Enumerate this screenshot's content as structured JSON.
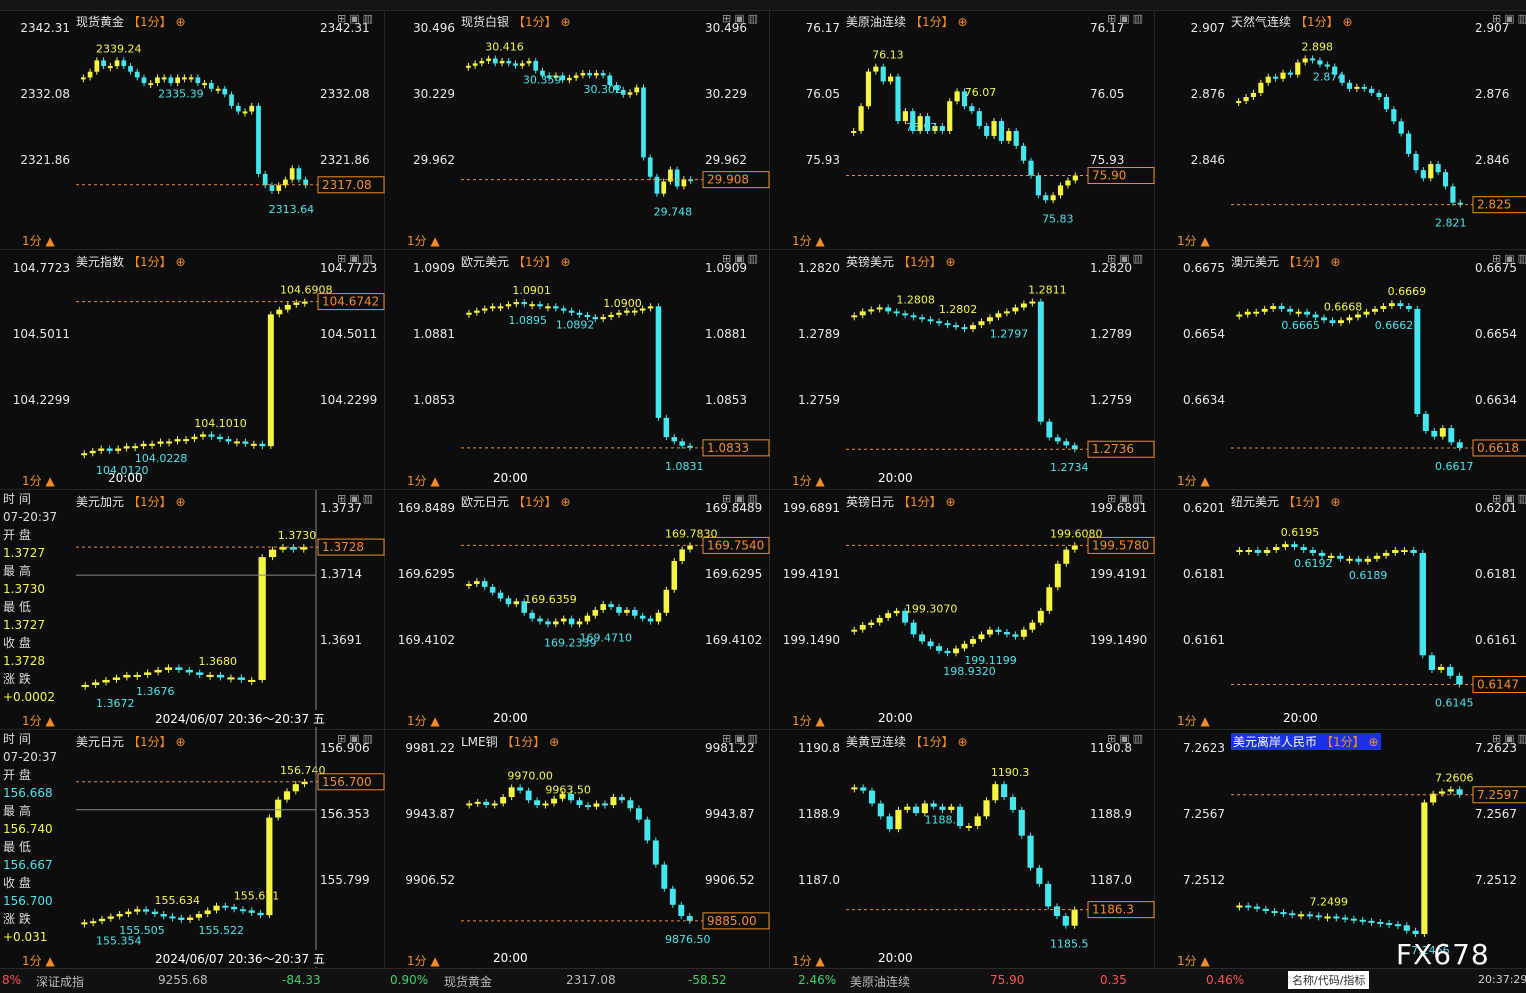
{
  "panels": [
    {
      "title": "现货黄金",
      "tf": "【1分】",
      "yticks": [
        "2342.31",
        "2332.08",
        "2321.86"
      ],
      "current": "2317.08",
      "hi": "2339.24",
      "lo": "2313.64",
      "extra": [
        "2335.39"
      ],
      "xlabel": "",
      "chart_data": {
        "type": "candlestick",
        "ylim": [
          2310,
          2344
        ],
        "closes": [
          2336,
          2337,
          2339,
          2338,
          2338,
          2339,
          2338,
          2337,
          2336,
          2335,
          2335,
          2336,
          2336,
          2335,
          2336,
          2336,
          2336,
          2335,
          2335,
          2334,
          2334,
          2333,
          2331,
          2330,
          2330,
          2331,
          2319,
          2317,
          2316,
          2317,
          2318,
          2320,
          2318,
          2317
        ]
      }
    },
    {
      "title": "现货白银",
      "tf": "【1分】",
      "yticks": [
        "30.496",
        "30.229",
        "29.962"
      ],
      "current": "29.908",
      "hi": "30.416",
      "lo": "29.748",
      "extra": [
        "30.359",
        "30.302"
      ],
      "xlabel": "",
      "chart_data": {
        "type": "candlestick",
        "ylim": [
          29.72,
          30.52
        ],
        "closes": [
          30.38,
          30.39,
          30.4,
          30.41,
          30.39,
          30.4,
          30.39,
          30.38,
          30.39,
          30.4,
          30.36,
          30.34,
          30.33,
          30.34,
          30.32,
          30.33,
          30.34,
          30.35,
          30.34,
          30.35,
          30.34,
          30.3,
          30.28,
          30.26,
          30.27,
          30.29,
          30.0,
          29.92,
          29.85,
          29.9,
          29.95,
          29.88,
          29.91,
          29.908
        ]
      }
    },
    {
      "title": "美原油连续",
      "tf": "【1分】",
      "yticks": [
        "76.17",
        "76.05",
        "75.93"
      ],
      "current": "75.90",
      "hi": "76.13",
      "lo": "75.83",
      "extra": [
        "75.97",
        "76.07"
      ],
      "xlabel": "",
      "chart_data": {
        "type": "candlestick",
        "ylim": [
          75.8,
          76.19
        ],
        "closes": [
          75.99,
          76.04,
          76.11,
          76.12,
          76.09,
          76.1,
          76.01,
          76.03,
          75.99,
          76.02,
          75.99,
          76.0,
          75.99,
          76.05,
          76.07,
          76.04,
          76.03,
          76.0,
          75.98,
          76.01,
          75.97,
          75.99,
          75.96,
          75.93,
          75.9,
          75.86,
          75.85,
          75.86,
          75.88,
          75.89,
          75.9
        ]
      }
    },
    {
      "title": "天然气连续",
      "tf": "【1分】",
      "yticks": [
        "2.907",
        "2.876",
        "2.846"
      ],
      "current": "2.825",
      "hi": "2.898",
      "lo": "2.821",
      "extra": [
        "2.874"
      ],
      "xlabel": "",
      "chart_data": {
        "type": "candlestick",
        "ylim": [
          2.815,
          2.91
        ],
        "closes": [
          2.876,
          2.878,
          2.88,
          2.885,
          2.888,
          2.887,
          2.89,
          2.889,
          2.895,
          2.897,
          2.896,
          2.894,
          2.893,
          2.889,
          2.885,
          2.882,
          2.883,
          2.882,
          2.88,
          2.878,
          2.872,
          2.866,
          2.86,
          2.85,
          2.842,
          2.838,
          2.845,
          2.841,
          2.834,
          2.826,
          2.825
        ]
      }
    },
    {
      "title": "美元指数",
      "tf": "【1分】",
      "yticks": [
        "104.7723",
        "104.5011",
        "104.2299"
      ],
      "current": "104.6742",
      "hi": "104.6908",
      "lo": "104.0120",
      "extra": [
        "104.0228",
        "104.1010"
      ],
      "xlabel": "20:00",
      "chart_data": {
        "type": "candlestick",
        "ylim": [
          103.98,
          104.8
        ],
        "closes": [
          104.03,
          104.04,
          104.05,
          104.04,
          104.05,
          104.06,
          104.06,
          104.07,
          104.07,
          104.08,
          104.08,
          104.09,
          104.09,
          104.1,
          104.11,
          104.1,
          104.09,
          104.08,
          104.08,
          104.07,
          104.07,
          104.06,
          104.62,
          104.64,
          104.66,
          104.67,
          104.674
        ]
      }
    },
    {
      "title": "欧元美元",
      "tf": "【1分】",
      "yticks": [
        "1.0909",
        "1.0881",
        "1.0853"
      ],
      "current": "1.0833",
      "hi": "1.0901",
      "lo": "1.0831",
      "extra": [
        "1.0895",
        "1.0892",
        "1.0900"
      ],
      "xlabel": "20:00",
      "chart_data": {
        "type": "candlestick",
        "ylim": [
          1.0825,
          1.0915
        ],
        "closes": [
          1.0896,
          1.0897,
          1.0898,
          1.0899,
          1.0899,
          1.09,
          1.0901,
          1.09,
          1.09,
          1.0899,
          1.0899,
          1.0898,
          1.0897,
          1.0896,
          1.0895,
          1.0894,
          1.0893,
          1.0894,
          1.0895,
          1.0896,
          1.0897,
          1.0897,
          1.0898,
          1.0899,
          1.0847,
          1.0838,
          1.0836,
          1.0834,
          1.0833
        ]
      }
    },
    {
      "title": "英镑美元",
      "tf": "【1分】",
      "yticks": [
        "1.2820",
        "1.2789",
        "1.2759"
      ],
      "current": "1.2736",
      "hi": "1.2811",
      "lo": "1.2734",
      "extra": [
        "1.2808",
        "1.2802",
        "1.2797"
      ],
      "xlabel": "20:00",
      "chart_data": {
        "type": "candlestick",
        "ylim": [
          1.2728,
          1.2826
        ],
        "closes": [
          1.2804,
          1.2806,
          1.2807,
          1.2808,
          1.2806,
          1.2805,
          1.2804,
          1.2803,
          1.2802,
          1.2801,
          1.28,
          1.2799,
          1.2798,
          1.2797,
          1.2799,
          1.2801,
          1.2803,
          1.2805,
          1.2806,
          1.2808,
          1.281,
          1.2811,
          1.275,
          1.2742,
          1.274,
          1.2738,
          1.2736
        ]
      }
    },
    {
      "title": "澳元美元",
      "tf": "【1分】",
      "yticks": [
        "0.6675",
        "0.6654",
        "0.6634"
      ],
      "current": "0.6618",
      "hi": "0.6669",
      "lo": "0.6617",
      "extra": [
        "0.6665",
        "0.6668",
        "0.6662"
      ],
      "xlabel": "",
      "chart_data": {
        "type": "candlestick",
        "ylim": [
          0.6612,
          0.668
        ],
        "closes": [
          0.6665,
          0.6666,
          0.6666,
          0.6667,
          0.6668,
          0.6667,
          0.6666,
          0.6666,
          0.6665,
          0.6664,
          0.6663,
          0.6662,
          0.6663,
          0.6664,
          0.6665,
          0.6666,
          0.6667,
          0.6668,
          0.6669,
          0.6668,
          0.6667,
          0.663,
          0.6624,
          0.6622,
          0.6625,
          0.662,
          0.6618
        ]
      }
    },
    {
      "title": "美元加元",
      "tf": "【1分】",
      "yticks": [
        "1.3737",
        "1.3714",
        "1.3691"
      ],
      "current": "1.3728",
      "hi": "1.3730",
      "lo": "1.3672",
      "extra": [
        "1.3676",
        "1.3680"
      ],
      "xlabel": "",
      "info": {
        "time_l": "时 间",
        "time": "07-20:37",
        "open_l": "开 盘",
        "open": "1.3727",
        "high_l": "最 高",
        "high": "1.3730",
        "low_l": "最 低",
        "low": "1.3727",
        "close_l": "收 盘",
        "close": "1.3728",
        "chg_l": "涨 跌",
        "chg": "+0.0002"
      },
      "range": "2024/06/07 20:36～20:37 五",
      "chart_data": {
        "type": "candlestick",
        "ylim": [
          1.3665,
          1.3742
        ],
        "closes": [
          1.3673,
          1.3674,
          1.3675,
          1.3676,
          1.3677,
          1.3677,
          1.3678,
          1.3679,
          1.368,
          1.3679,
          1.3678,
          1.3677,
          1.3677,
          1.3676,
          1.3676,
          1.3675,
          1.3675,
          1.3724,
          1.3727,
          1.3728,
          1.3727,
          1.3728
        ]
      }
    },
    {
      "title": "欧元日元",
      "tf": "【1分】",
      "yticks": [
        "169.8489",
        "169.6295",
        "169.4102"
      ],
      "current": "169.7540",
      "hi": "169.7830",
      "lo": "169.2339",
      "extra": [
        "169.6359",
        "169.4710"
      ],
      "xlabel": "20:00",
      "chart_data": {
        "type": "candlestick",
        "ylim": [
          169.2,
          169.87
        ],
        "closes": [
          169.62,
          169.63,
          169.61,
          169.59,
          169.57,
          169.55,
          169.56,
          169.52,
          169.5,
          169.49,
          169.48,
          169.49,
          169.5,
          169.48,
          169.49,
          169.51,
          169.53,
          169.55,
          169.54,
          169.52,
          169.53,
          169.51,
          169.5,
          169.49,
          169.52,
          169.6,
          169.7,
          169.74,
          169.754
        ]
      }
    },
    {
      "title": "英镑日元",
      "tf": "【1分】",
      "yticks": [
        "199.6891",
        "199.4191",
        "199.1490"
      ],
      "current": "199.5780",
      "hi": "199.6080",
      "lo": "198.9320",
      "extra": [
        "199.3070",
        "199.1199"
      ],
      "xlabel": "20:00",
      "chart_data": {
        "type": "candlestick",
        "ylim": [
          198.9,
          199.72
        ],
        "closes": [
          199.22,
          199.24,
          199.25,
          199.27,
          199.29,
          199.3,
          199.25,
          199.2,
          199.17,
          199.15,
          199.13,
          199.12,
          199.14,
          199.16,
          199.18,
          199.2,
          199.22,
          199.21,
          199.2,
          199.19,
          199.22,
          199.25,
          199.3,
          199.4,
          199.5,
          199.56,
          199.578
        ]
      }
    },
    {
      "title": "纽元美元",
      "tf": "【1分】",
      "yticks": [
        "0.6201",
        "0.6181",
        "0.6161"
      ],
      "current": "0.6147",
      "hi": "0.6195",
      "lo": "0.6145",
      "extra": [
        "0.6192",
        "0.6189"
      ],
      "xlabel": "20:00",
      "chart_data": {
        "type": "candlestick",
        "ylim": [
          0.614,
          0.6206
        ],
        "closes": [
          0.6193,
          0.6193,
          0.6192,
          0.6193,
          0.6194,
          0.6195,
          0.6194,
          0.6193,
          0.6192,
          0.6191,
          0.6191,
          0.619,
          0.619,
          0.6189,
          0.619,
          0.6191,
          0.6192,
          0.6193,
          0.6193,
          0.6192,
          0.6157,
          0.6152,
          0.6153,
          0.615,
          0.6147
        ]
      }
    },
    {
      "title": "美元日元",
      "tf": "【1分】",
      "yticks": [
        "156.906",
        "156.353",
        "155.799"
      ],
      "current": "156.700",
      "hi": "156.740",
      "lo": "155.354",
      "extra": [
        "155.505",
        "155.634",
        "155.522",
        "155.671"
      ],
      "xlabel": "",
      "info": {
        "time_l": "时 间",
        "time": "07-20:37",
        "open_l": "开 盘",
        "open": "156.668",
        "high_l": "最 高",
        "high": "156.740",
        "low_l": "最 低",
        "low": "156.667",
        "close_l": "收 盘",
        "close": "156.700",
        "chg_l": "涨 跌",
        "chg": "+0.031"
      },
      "range": "2024/06/07 20:36～20:37 五",
      "chart_data": {
        "type": "candlestick",
        "ylim": [
          155.33,
          156.95
        ],
        "closes": [
          155.52,
          155.53,
          155.55,
          155.57,
          155.59,
          155.61,
          155.63,
          155.61,
          155.59,
          155.57,
          155.56,
          155.54,
          155.56,
          155.59,
          155.62,
          155.66,
          155.65,
          155.63,
          155.62,
          155.6,
          155.58,
          156.4,
          156.55,
          156.62,
          156.68,
          156.7
        ]
      }
    },
    {
      "title": "LME铜",
      "tf": "【1分】",
      "yticks": [
        "9981.22",
        "9943.87",
        "9906.52"
      ],
      "current": "9885.00",
      "hi": "9970.00",
      "lo": "9876.50",
      "extra": [
        "9963.50"
      ],
      "xlabel": "20:00",
      "chart_data": {
        "type": "candlestick",
        "ylim": [
          9870,
          9990
        ],
        "closes": [
          9958,
          9959,
          9957,
          9958,
          9962,
          9968,
          9966,
          9960,
          9957,
          9958,
          9961,
          9964,
          9960,
          9957,
          9956,
          9958,
          9957,
          9962,
          9960,
          9955,
          9948,
          9935,
          9920,
          9905,
          9895,
          9888,
          9885
        ]
      }
    },
    {
      "title": "美黄豆连续",
      "tf": "【1分】",
      "yticks": [
        "1190.8",
        "1188.9",
        "1187.0"
      ],
      "current": "1186.3",
      "hi": "1190.3",
      "lo": "1185.5",
      "extra": [
        "1188.3"
      ],
      "xlabel": "20:00",
      "chart_data": {
        "type": "candlestick",
        "ylim": [
          1185.2,
          1191.2
        ],
        "closes": [
          1190.1,
          1190.0,
          1189.6,
          1189.2,
          1188.8,
          1189.4,
          1189.5,
          1189.3,
          1189.6,
          1189.5,
          1189.4,
          1189.5,
          1188.9,
          1188.9,
          1189.2,
          1189.7,
          1190.2,
          1189.8,
          1189.4,
          1188.6,
          1187.6,
          1187.1,
          1186.4,
          1186.1,
          1185.8,
          1186.3
        ]
      }
    },
    {
      "title": "美元离岸人民币",
      "tf": "【1分】",
      "yticks": [
        "7.2623",
        "7.2567",
        "7.2512"
      ],
      "current": "7.2597",
      "hi": "7.2606",
      "lo": "7.2466",
      "extra": [
        "7.2499"
      ],
      "xlabel": "",
      "chart_data": {
        "type": "candlestick",
        "ylim": [
          7.246,
          7.2636
        ],
        "closes": [
          7.2496,
          7.2495,
          7.2493,
          7.2491,
          7.249,
          7.2489,
          7.2488,
          7.2488,
          7.2487,
          7.2486,
          7.2486,
          7.2485,
          7.2484,
          7.2483,
          7.2482,
          7.2481,
          7.248,
          7.2479,
          7.2478,
          7.2473,
          7.247,
          7.259,
          7.2598,
          7.26,
          7.2602,
          7.2597
        ]
      }
    }
  ],
  "tf_button": "1分",
  "bottom": {
    "p1": "8%",
    "n1": "深证成指",
    "v1": "9255.68",
    "c1": "-84.33",
    "pc1": "0.90%",
    "n2": "现货黄金",
    "v2": "2317.08",
    "c2": "-58.52",
    "pc2": "2.46%",
    "n3": "美原油连续",
    "v3": "75.90",
    "c3": "0.35",
    "pc3": "0.46%",
    "search": "名称/代码/指标",
    "time": "20:37:29"
  },
  "watermark": "FX678"
}
